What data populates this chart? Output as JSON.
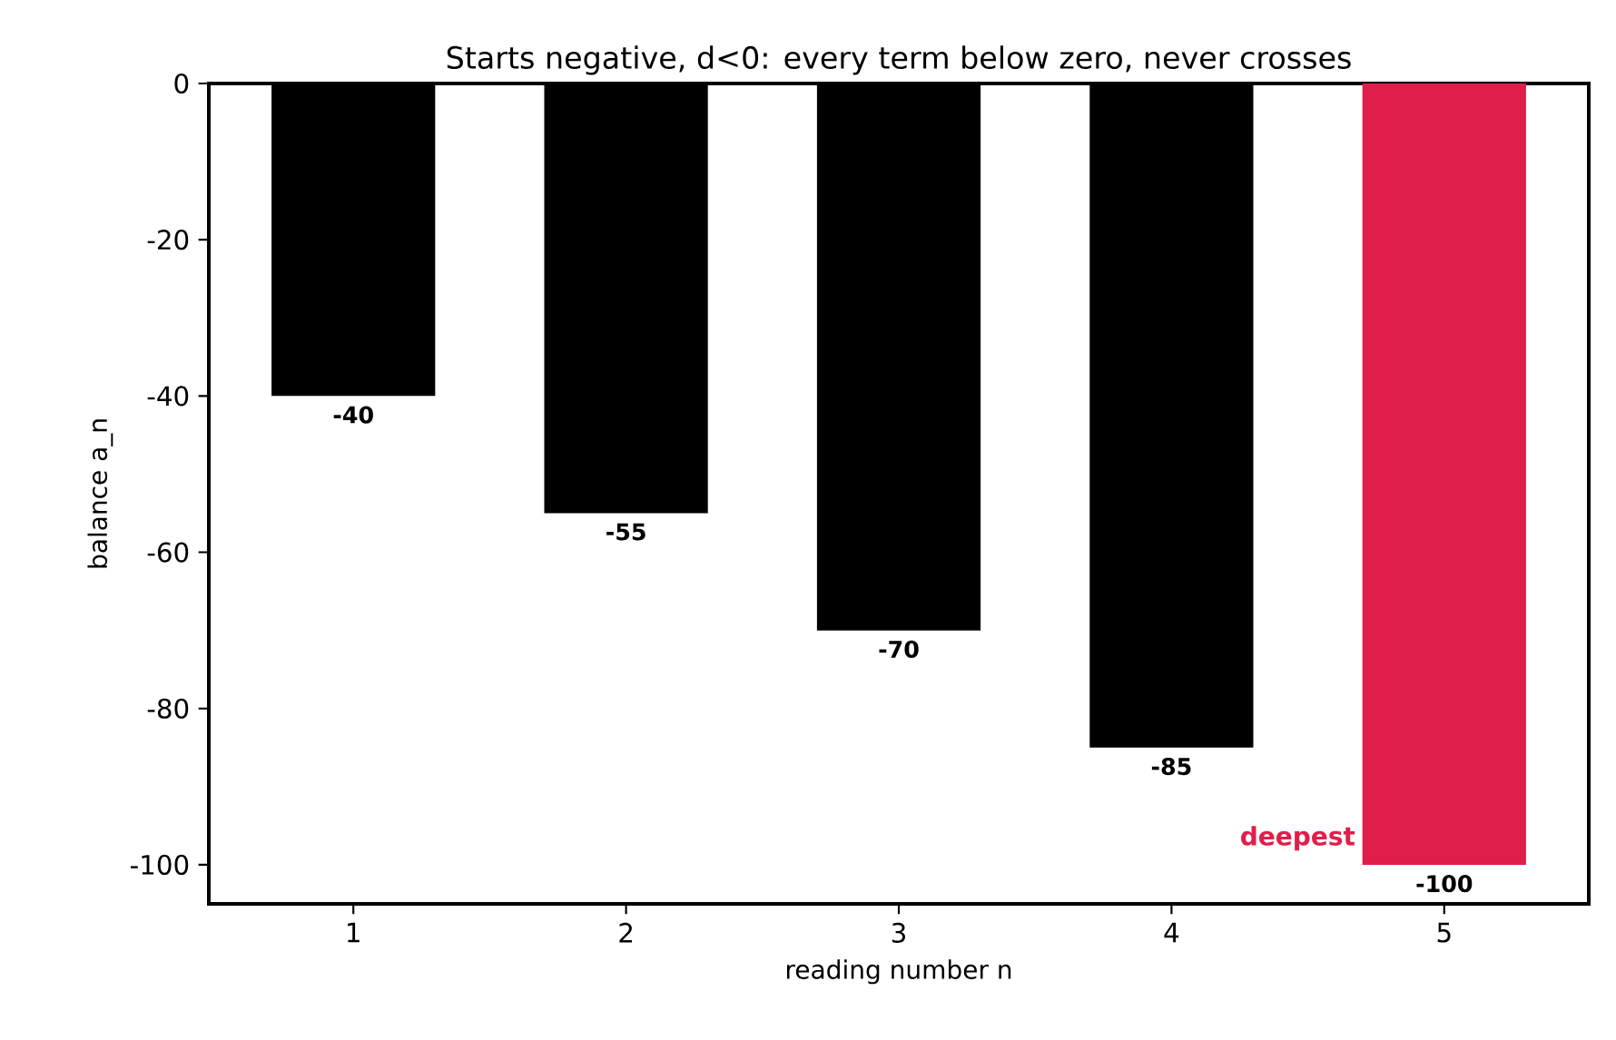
{
  "chart_data": {
    "type": "bar",
    "title": "Starts negative, d<0: every term below zero, never crosses",
    "xlabel": "reading number  n",
    "ylabel": "balance  a_n",
    "categories": [
      "1",
      "2",
      "3",
      "4",
      "5"
    ],
    "values": [
      -40,
      -55,
      -70,
      -85,
      -100
    ],
    "colors": [
      "#000000",
      "#000000",
      "#000000",
      "#000000",
      "#e01e4a"
    ],
    "ylim": [
      -105,
      0
    ],
    "yticks": [
      0,
      -20,
      -40,
      -60,
      -80,
      -100
    ],
    "data_labels": true,
    "grid": false,
    "annotations": [
      "deepest"
    ]
  }
}
